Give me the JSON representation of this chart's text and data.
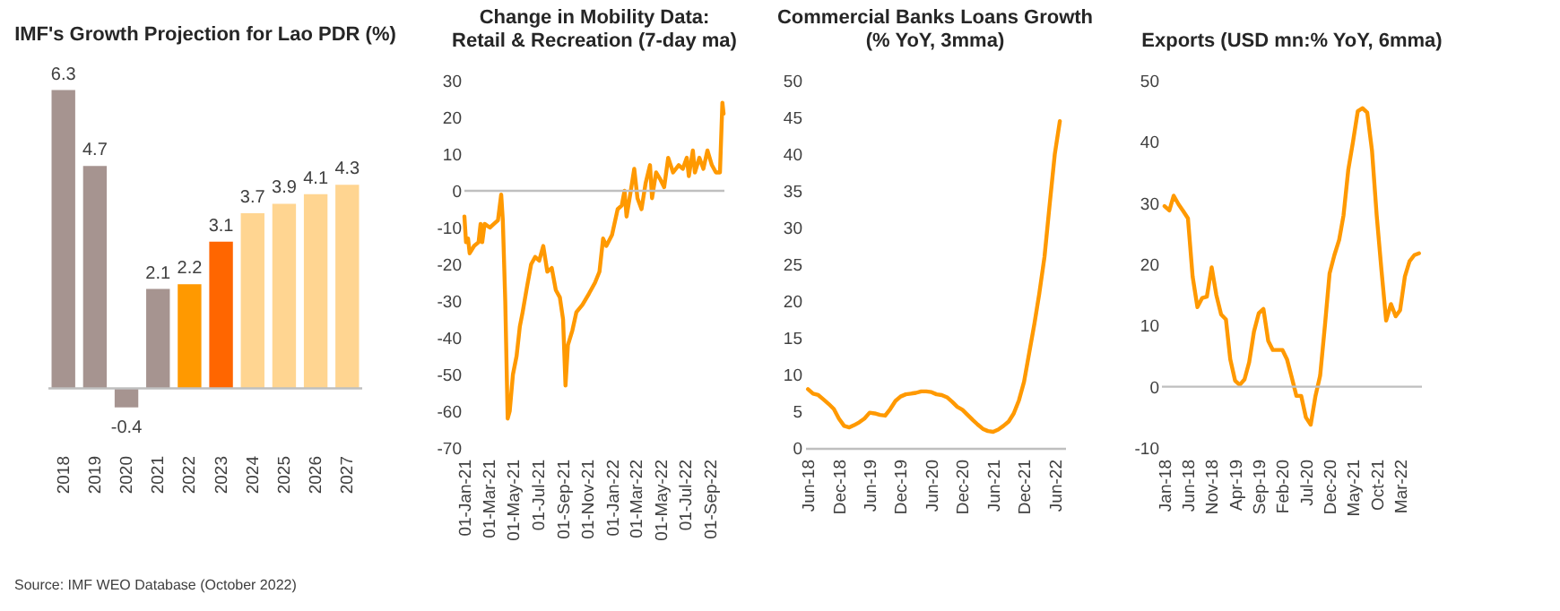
{
  "chart_data": [
    {
      "type": "bar",
      "title": "IMF's Growth Projection for Lao PDR (%)",
      "categories": [
        "2018",
        "2019",
        "2020",
        "2021",
        "2022",
        "2023",
        "2024",
        "2025",
        "2026",
        "2027"
      ],
      "values": [
        6.3,
        4.7,
        -0.4,
        2.1,
        2.2,
        3.1,
        3.7,
        3.9,
        4.1,
        4.3
      ],
      "colors": [
        "#a69490",
        "#a69490",
        "#a69490",
        "#a69490",
        "#ff9900",
        "#ff6600",
        "#ffd591",
        "#ffd591",
        "#ffd591",
        "#ffd591"
      ],
      "data_labels": true,
      "tick_labels": "x",
      "ref_lines": [
        {
          "axis": "y",
          "value": 0,
          "color": "#bfbfbf"
        }
      ],
      "annotations": [
        "Source: IMF WEO Database (October 2022)"
      ]
    },
    {
      "type": "line",
      "title": "Change in Mobility Data: Retail & Recreation (7-day ma)",
      "x": [
        "2021-01-01",
        "2021-01-05",
        "2021-01-10",
        "2021-01-14",
        "2021-01-25",
        "2021-02-05",
        "2021-02-10",
        "2021-02-14",
        "2021-02-20",
        "2021-03-05",
        "2021-03-15",
        "2021-03-25",
        "2021-04-02",
        "2021-04-06",
        "2021-04-12",
        "2021-04-18",
        "2021-04-23",
        "2021-05-01",
        "2021-05-10",
        "2021-05-18",
        "2021-05-25",
        "2021-06-05",
        "2021-06-15",
        "2021-06-25",
        "2021-07-05",
        "2021-07-15",
        "2021-07-25",
        "2021-08-05",
        "2021-08-15",
        "2021-08-25",
        "2021-09-02",
        "2021-09-08",
        "2021-09-14",
        "2021-09-25",
        "2021-10-05",
        "2021-10-20",
        "2021-11-05",
        "2021-11-20",
        "2021-12-01",
        "2021-12-10",
        "2021-12-18",
        "2022-01-01",
        "2022-01-15",
        "2022-01-25",
        "2022-02-01",
        "2022-02-06",
        "2022-02-15",
        "2022-02-25",
        "2022-03-05",
        "2022-03-15",
        "2022-03-25",
        "2022-04-05",
        "2022-04-10",
        "2022-04-20",
        "2022-05-01",
        "2022-05-10",
        "2022-05-20",
        "2022-06-01",
        "2022-06-15",
        "2022-06-25",
        "2022-07-05",
        "2022-07-10",
        "2022-07-20",
        "2022-07-25",
        "2022-08-05",
        "2022-08-15",
        "2022-08-25",
        "2022-09-05",
        "2022-09-15",
        "2022-09-25",
        "2022-10-01",
        "2022-10-04"
      ],
      "series": [
        {
          "color": "#ff9900",
          "values": [
            -7,
            -14,
            -13,
            -17,
            -15,
            -14,
            -9,
            -14,
            -9,
            -10,
            -9,
            -8,
            -1,
            -8,
            -30,
            -62,
            -60,
            -50,
            -45,
            -37,
            -33,
            -26,
            -20,
            -18,
            -19,
            -15,
            -22,
            -21,
            -27,
            -29,
            -35,
            -53,
            -42,
            -38,
            -33,
            -31,
            -28,
            -25,
            -22,
            -13,
            -15,
            -12,
            -5,
            -4,
            0,
            -7,
            -1,
            6,
            -2,
            -5,
            2,
            7,
            -2,
            5,
            3,
            1,
            9,
            5,
            7,
            6,
            9,
            4,
            11,
            5,
            9,
            6,
            11,
            7,
            5,
            5,
            24,
            21
          ]
        }
      ],
      "xlim": [
        "2021-01-01",
        "2022-10-06"
      ],
      "xticks": [
        {
          "value": "2021-01-01",
          "label": "01-Jan-21"
        },
        {
          "value": "2021-03-01",
          "label": "01-Mar-21"
        },
        {
          "value": "2021-05-01",
          "label": "01-May-21"
        },
        {
          "value": "2021-07-01",
          "label": "01-Jul-21"
        },
        {
          "value": "2021-09-01",
          "label": "01-Sep-21"
        },
        {
          "value": "2021-11-01",
          "label": "01-Nov-21"
        },
        {
          "value": "2022-01-01",
          "label": "01-Jan-22"
        },
        {
          "value": "2022-03-01",
          "label": "01-Mar-22"
        },
        {
          "value": "2022-05-01",
          "label": "01-May-22"
        },
        {
          "value": "2022-07-01",
          "label": "01-Jul-22"
        },
        {
          "value": "2022-09-01",
          "label": "01-Sep-22"
        }
      ],
      "ylim": [
        -70,
        30
      ],
      "yticks": [
        -70,
        -60,
        -50,
        -40,
        -30,
        -20,
        -10,
        0,
        10,
        20,
        30
      ],
      "ref_lines": [
        {
          "axis": "y",
          "value": 0,
          "color": "#bfbfbf"
        }
      ]
    },
    {
      "type": "line",
      "title": "Commercial Banks Loans Growth (% YoY, 3mma)",
      "x": [
        "2018-06",
        "2018-07",
        "2018-08",
        "2018-09",
        "2018-10",
        "2018-11",
        "2018-12",
        "2019-01",
        "2019-02",
        "2019-03",
        "2019-04",
        "2019-05",
        "2019-06",
        "2019-07",
        "2019-08",
        "2019-09",
        "2019-10",
        "2019-11",
        "2019-12",
        "2020-01",
        "2020-02",
        "2020-03",
        "2020-04",
        "2020-05",
        "2020-06",
        "2020-07",
        "2020-08",
        "2020-09",
        "2020-10",
        "2020-11",
        "2020-12",
        "2021-01",
        "2021-02",
        "2021-03",
        "2021-04",
        "2021-05",
        "2021-06",
        "2021-07",
        "2021-08",
        "2021-09",
        "2021-10",
        "2021-11",
        "2021-12",
        "2022-01",
        "2022-02",
        "2022-03",
        "2022-04",
        "2022-05",
        "2022-06",
        "2022-07"
      ],
      "series": [
        {
          "color": "#ff9900",
          "values": [
            8,
            7.4,
            7.2,
            6.6,
            6,
            5.3,
            4,
            3,
            2.8,
            3.1,
            3.5,
            4,
            4.8,
            4.7,
            4.5,
            4.4,
            5.3,
            6.4,
            7,
            7.3,
            7.4,
            7.5,
            7.7,
            7.7,
            7.6,
            7.3,
            7.2,
            6.9,
            6.3,
            5.6,
            5.2,
            4.5,
            3.8,
            3.2,
            2.6,
            2.3,
            2.2,
            2.5,
            3,
            3.6,
            4.7,
            6.5,
            9,
            13,
            17,
            21,
            26,
            33,
            40,
            44.5
          ]
        }
      ],
      "xlim": [
        "2018-05-15",
        "2022-08-01"
      ],
      "xticks": [
        {
          "value": "2018-06",
          "label": "Jun-18"
        },
        {
          "value": "2018-12",
          "label": "Dec-18"
        },
        {
          "value": "2019-06",
          "label": "Jun-19"
        },
        {
          "value": "2019-12",
          "label": "Dec-19"
        },
        {
          "value": "2020-06",
          "label": "Jun-20"
        },
        {
          "value": "2020-12",
          "label": "Dec-20"
        },
        {
          "value": "2021-06",
          "label": "Jun-21"
        },
        {
          "value": "2021-12",
          "label": "Dec-21"
        },
        {
          "value": "2022-06",
          "label": "Jun-22"
        }
      ],
      "ylim": [
        0,
        50
      ],
      "yticks": [
        0,
        5,
        10,
        15,
        20,
        25,
        30,
        35,
        40,
        45,
        50
      ]
    },
    {
      "type": "line",
      "title": "Exports (USD mn:% YoY, 6mma)",
      "x": [
        "2018-01",
        "2018-02",
        "2018-03",
        "2018-04",
        "2018-05",
        "2018-06",
        "2018-07",
        "2018-08",
        "2018-09",
        "2018-10",
        "2018-11",
        "2018-12",
        "2019-01",
        "2019-02",
        "2019-03",
        "2019-04",
        "2019-05",
        "2019-06",
        "2019-07",
        "2019-08",
        "2019-09",
        "2019-10",
        "2019-11",
        "2019-12",
        "2020-01",
        "2020-02",
        "2020-03",
        "2020-04",
        "2020-05",
        "2020-06",
        "2020-07",
        "2020-08",
        "2020-09",
        "2020-10",
        "2020-11",
        "2020-12",
        "2021-01",
        "2021-02",
        "2021-03",
        "2021-04",
        "2021-05",
        "2021-06",
        "2021-07",
        "2021-08",
        "2021-09",
        "2021-10",
        "2021-11",
        "2021-12",
        "2022-01",
        "2022-02",
        "2022-03",
        "2022-04",
        "2022-05",
        "2022-06",
        "2022-07"
      ],
      "series": [
        {
          "color": "#ff9900",
          "values": [
            29.5,
            28.8,
            31.2,
            29.8,
            28.7,
            27.5,
            18,
            13,
            14.5,
            14.7,
            19.5,
            15,
            11.8,
            11,
            4.5,
            1,
            0.3,
            1.2,
            4,
            9,
            12,
            12.7,
            7.5,
            6,
            6,
            6,
            4.5,
            1.5,
            -1.5,
            -1.5,
            -5,
            -6.2,
            -1.5,
            1.8,
            10,
            18.5,
            21.5,
            24,
            28,
            35.5,
            40,
            45,
            45.5,
            44.8,
            38.5,
            28,
            19,
            10.8,
            13.5,
            11.5,
            12.5,
            18,
            20.5,
            21.5,
            21.8
          ]
        }
      ],
      "xlim": [
        "2017-12-15",
        "2022-07-20"
      ],
      "xticks": [
        {
          "value": "2018-01",
          "label": "Jan-18"
        },
        {
          "value": "2018-06",
          "label": "Jun-18"
        },
        {
          "value": "2018-11",
          "label": "Nov-18"
        },
        {
          "value": "2019-04",
          "label": "Apr-19"
        },
        {
          "value": "2019-09",
          "label": "Sep-19"
        },
        {
          "value": "2020-02",
          "label": "Feb-20"
        },
        {
          "value": "2020-07",
          "label": "Jul-20"
        },
        {
          "value": "2020-12",
          "label": "Dec-20"
        },
        {
          "value": "2021-05",
          "label": "May-21"
        },
        {
          "value": "2021-10",
          "label": "Oct-21"
        },
        {
          "value": "2022-03",
          "label": "Mar-22"
        }
      ],
      "ylim": [
        -10,
        50
      ],
      "yticks": [
        -10,
        0,
        10,
        20,
        30,
        40,
        50
      ],
      "ref_lines": [
        {
          "axis": "y",
          "value": 0,
          "color": "#bfbfbf"
        }
      ]
    }
  ]
}
